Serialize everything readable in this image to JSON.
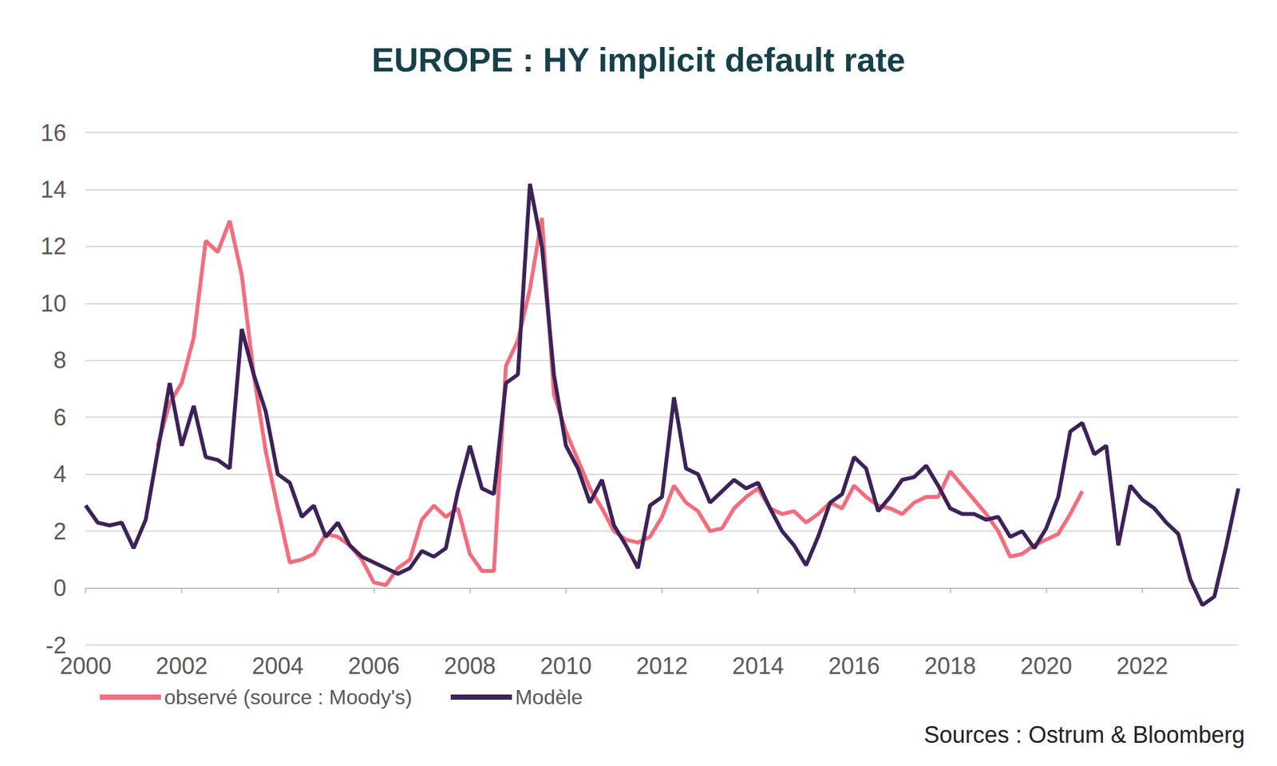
{
  "chart_data": {
    "type": "line",
    "title": "EUROPE : HY implicit default rate",
    "source": "Sources : Ostrum & Bloomberg",
    "x": [
      2000,
      2000.25,
      2000.5,
      2000.75,
      2001,
      2001.25,
      2001.5,
      2001.75,
      2002,
      2002.25,
      2002.5,
      2002.75,
      2003,
      2003.25,
      2003.5,
      2003.75,
      2004,
      2004.25,
      2004.5,
      2004.75,
      2005,
      2005.25,
      2005.5,
      2005.75,
      2006,
      2006.25,
      2006.5,
      2006.75,
      2007,
      2007.25,
      2007.5,
      2007.75,
      2008,
      2008.25,
      2008.5,
      2008.75,
      2009,
      2009.25,
      2009.5,
      2009.75,
      2010,
      2010.25,
      2010.5,
      2010.75,
      2011,
      2011.25,
      2011.5,
      2011.75,
      2012,
      2012.25,
      2012.5,
      2012.75,
      2013,
      2013.25,
      2013.5,
      2013.75,
      2014,
      2014.25,
      2014.5,
      2014.75,
      2015,
      2015.25,
      2015.5,
      2015.75,
      2016,
      2016.25,
      2016.5,
      2016.75,
      2017,
      2017.25,
      2017.5,
      2017.75,
      2018,
      2018.25,
      2018.5,
      2018.75,
      2019,
      2019.25,
      2019.5,
      2019.75,
      2020,
      2020.25,
      2020.5,
      2020.75,
      2021,
      2021.25,
      2021.5,
      2021.75,
      2022,
      2022.25,
      2022.5,
      2022.75,
      2023,
      2023.25,
      2023.5,
      2023.75,
      2024
    ],
    "series": [
      {
        "name": "observé (source : Moody's)",
        "color": "#f26d7d",
        "values": [
          null,
          null,
          null,
          null,
          null,
          null,
          5.0,
          6.5,
          7.2,
          8.8,
          12.2,
          11.8,
          12.9,
          11.0,
          7.5,
          4.8,
          2.8,
          0.9,
          1.0,
          1.2,
          1.9,
          1.8,
          1.5,
          1.0,
          0.2,
          0.1,
          0.7,
          1.0,
          2.4,
          2.9,
          2.5,
          2.8,
          1.2,
          0.6,
          0.6,
          7.8,
          8.7,
          10.5,
          13.0,
          6.8,
          5.5,
          4.5,
          3.5,
          2.8,
          2.0,
          1.7,
          1.6,
          1.8,
          2.5,
          3.6,
          3.0,
          2.7,
          2.0,
          2.1,
          2.8,
          3.2,
          3.5,
          2.8,
          2.6,
          2.7,
          2.3,
          2.6,
          3.0,
          2.8,
          3.6,
          3.2,
          2.9,
          2.8,
          2.6,
          3.0,
          3.2,
          3.2,
          4.1,
          3.6,
          3.1,
          2.6,
          2.0,
          1.1,
          1.2,
          1.5,
          1.7,
          1.9,
          2.6,
          3.4,
          null,
          null,
          null,
          null,
          null,
          null,
          null,
          null,
          null,
          null,
          null,
          null,
          null
        ]
      },
      {
        "name": "Modèle",
        "color": "#3d2258",
        "values": [
          2.9,
          2.3,
          2.2,
          2.3,
          1.4,
          2.4,
          4.8,
          7.2,
          5.0,
          6.4,
          4.6,
          4.5,
          4.2,
          9.1,
          7.5,
          6.2,
          4.0,
          3.7,
          2.5,
          2.9,
          1.8,
          2.3,
          1.5,
          1.1,
          0.9,
          0.7,
          0.5,
          0.7,
          1.3,
          1.1,
          1.4,
          3.4,
          5.0,
          3.5,
          3.3,
          7.2,
          7.5,
          14.2,
          12.0,
          7.5,
          5.0,
          4.2,
          3.0,
          3.8,
          2.2,
          1.5,
          0.7,
          2.9,
          3.2,
          6.7,
          4.2,
          4.0,
          3.0,
          3.4,
          3.8,
          3.5,
          3.7,
          2.8,
          2.0,
          1.5,
          0.8,
          1.8,
          3.0,
          3.3,
          4.6,
          4.2,
          2.7,
          3.2,
          3.8,
          3.9,
          4.3,
          3.6,
          2.8,
          2.6,
          2.6,
          2.4,
          2.5,
          1.8,
          2.0,
          1.4,
          2.1,
          3.2,
          5.5,
          5.8,
          4.7,
          5.0,
          1.5,
          3.6,
          3.1,
          2.8,
          2.3,
          1.9,
          0.3,
          -0.6,
          -0.3,
          1.5,
          3.5
        ]
      }
    ],
    "xlim": [
      2000,
      2024
    ],
    "xticks": [
      2000,
      2002,
      2004,
      2006,
      2008,
      2010,
      2012,
      2014,
      2016,
      2018,
      2020,
      2022
    ],
    "ylim": [
      -2,
      16
    ],
    "yticks": [
      -2,
      0,
      2,
      4,
      6,
      8,
      10,
      12,
      14,
      16
    ],
    "grid": true,
    "legend": "bottom"
  }
}
